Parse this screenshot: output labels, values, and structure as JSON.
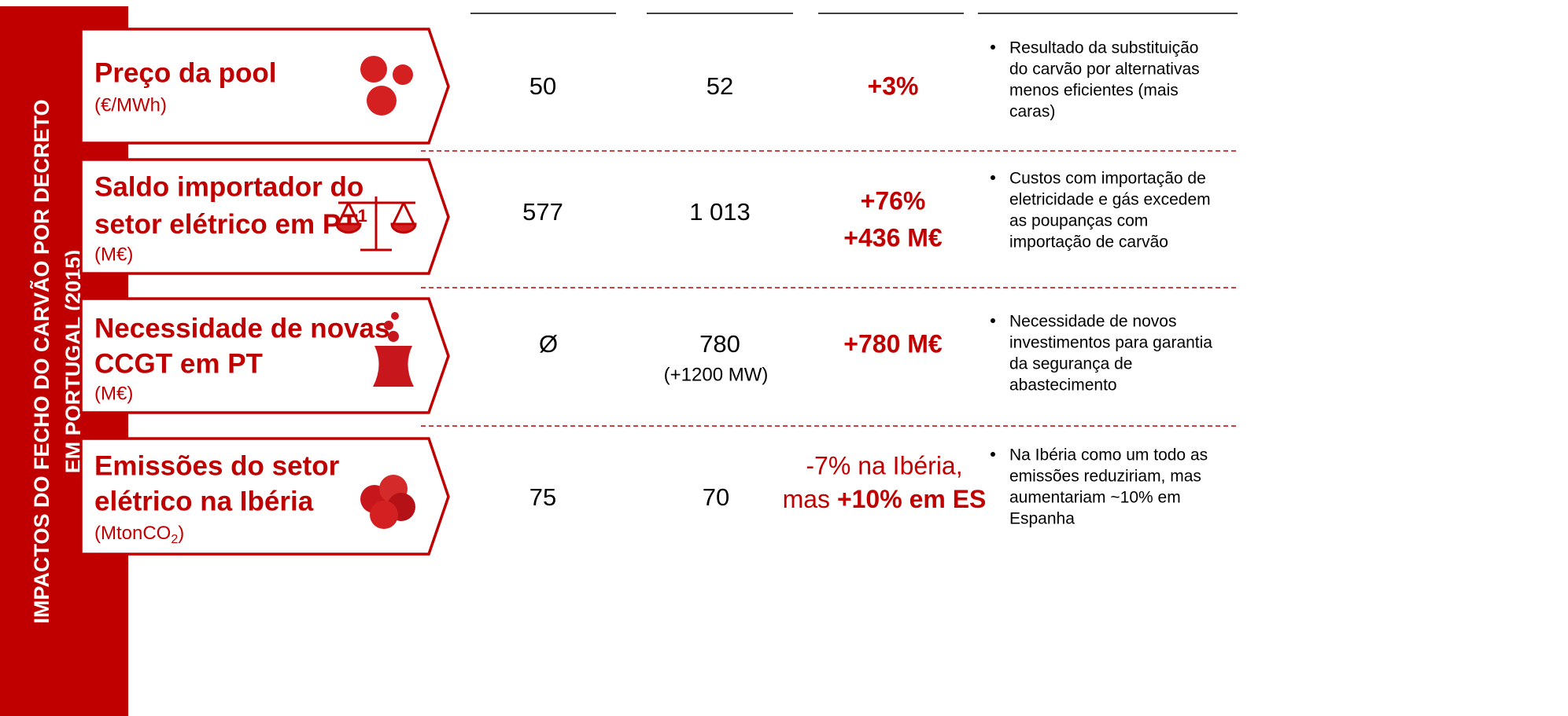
{
  "sidebar": [
    "IMPACTOS DO FECHO DO CARVÃO POR DECRETO",
    "EM PORTUGAL (2015)"
  ],
  "rows": [
    {
      "title": [
        "Preço da pool"
      ],
      "unit": "(€/MWh)",
      "col1": "50",
      "col2": "52",
      "change": [
        "+3%"
      ],
      "note": [
        "Resultado da substituição",
        "do carvão por alternativas",
        "menos eficientes (mais",
        "caras)"
      ]
    },
    {
      "title": [
        "Saldo importador do",
        "setor elétrico em PT"
      ],
      "footnote": "1",
      "unit": "(M€)",
      "col1": "577",
      "col2": "1 013",
      "change": [
        "+76%",
        "+436 M€"
      ],
      "note": [
        "Custos com importação de",
        "eletricidade e gás excedem",
        "as poupanças com",
        "importação de carvão"
      ]
    },
    {
      "title": [
        "Necessidade de novas",
        "CCGT em PT"
      ],
      "unit": "(M€)",
      "col1": "Ø",
      "col2": "780",
      "col2_sub": "(+1200 MW)",
      "change": [
        "+780 M€"
      ],
      "note": [
        "Necessidade de novos",
        "investimentos para garantia",
        "da segurança de",
        "abastecimento"
      ]
    },
    {
      "title": [
        "Emissões do setor",
        "elétrico na Ibéria"
      ],
      "unit": [
        "(MtonCO",
        "2",
        ")"
      ],
      "col1": "75",
      "col2": "70",
      "change_text": [
        "-7% na Ibéria,",
        "mas ",
        "+10% em ES"
      ],
      "note": [
        "Na Ibéria como um todo as",
        "emissões reduziriam, mas",
        "aumentariam ~10% em",
        "Espanha"
      ]
    }
  ]
}
